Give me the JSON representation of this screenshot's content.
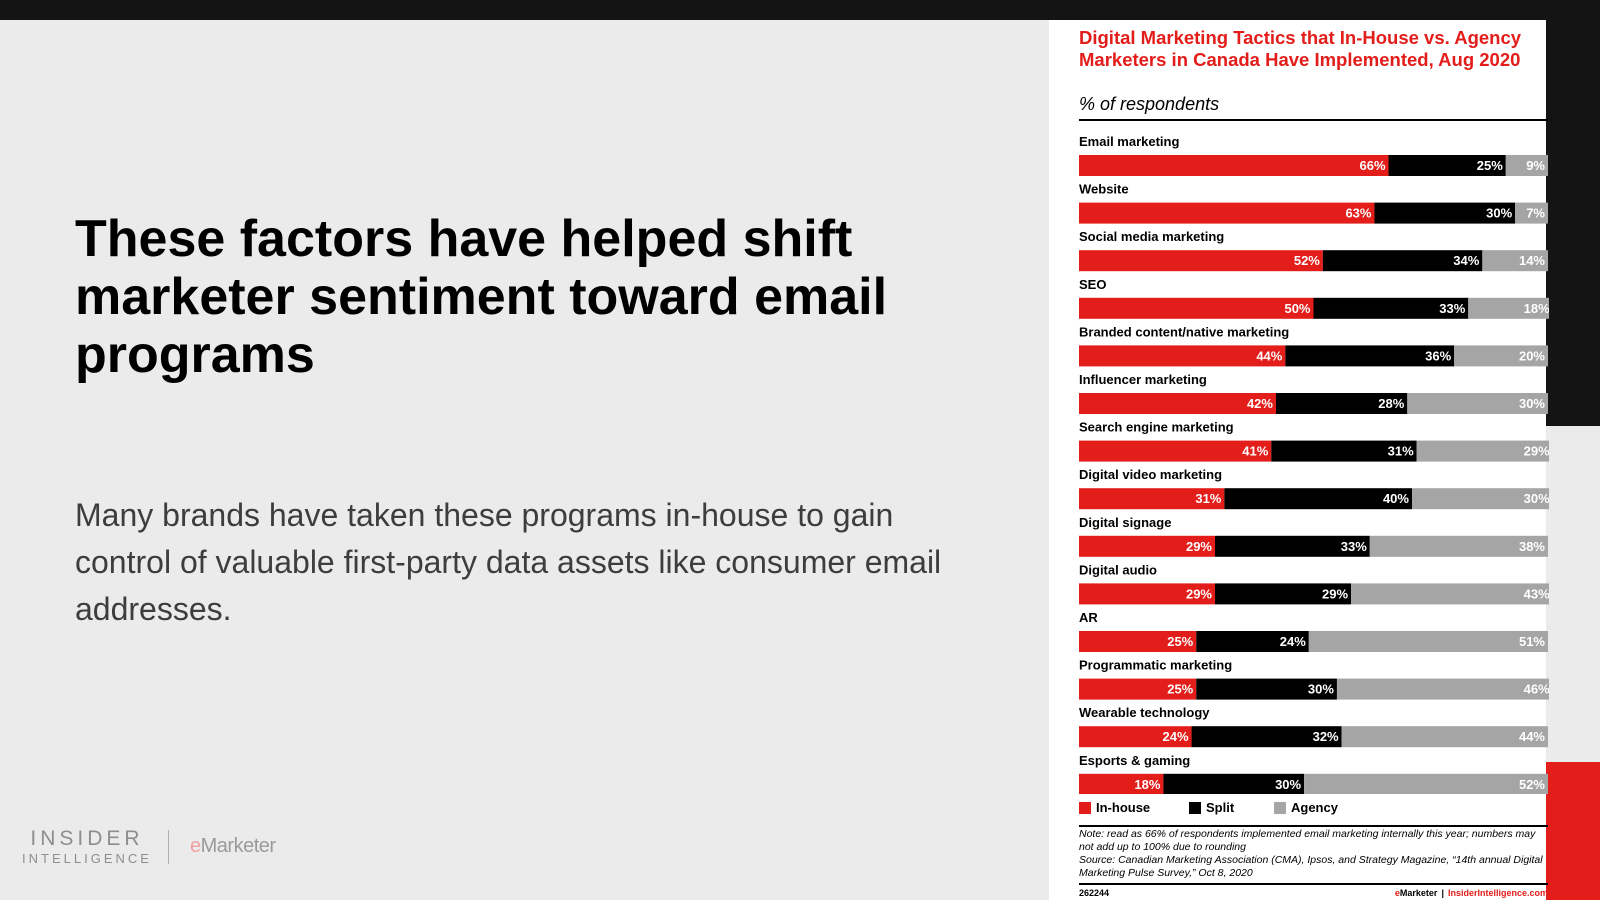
{
  "slide": {
    "title": "These factors have helped shift marketer sentiment toward email programs",
    "body": "Many brands have taken these programs in-house to gain control of valuable first-party data assets like consumer email addresses."
  },
  "branding": {
    "insider_line1": "INSIDER",
    "insider_line2": "INTELLIGENCE",
    "emarketer_e": "e",
    "emarketer_rest": "Marketer"
  },
  "colors": {
    "inhouse": "#e31d1a",
    "split": "#000000",
    "agency": "#a5a5a5",
    "accent": "#e31d1a"
  },
  "chart_data": {
    "type": "bar",
    "orientation": "horizontal",
    "stacked": true,
    "title": "Digital Marketing Tactics that In-House vs. Agency Marketers in Canada Have Implemented, Aug 2020",
    "subtitle": "% of respondents",
    "categories": [
      "Email marketing",
      "Website",
      "Social media marketing",
      "SEO",
      "Branded content/native marketing",
      "Influencer marketing",
      "Search engine marketing",
      "Digital video marketing",
      "Digital signage",
      "Digital audio",
      "AR",
      "Programmatic marketing",
      "Wearable technology",
      "Esports & gaming"
    ],
    "series": [
      {
        "name": "In-house",
        "values": [
          66,
          63,
          52,
          50,
          44,
          42,
          41,
          31,
          29,
          29,
          25,
          25,
          24,
          18
        ]
      },
      {
        "name": "Split",
        "values": [
          25,
          30,
          34,
          33,
          36,
          28,
          31,
          40,
          33,
          29,
          24,
          30,
          32,
          30
        ]
      },
      {
        "name": "Agency",
        "values": [
          9,
          7,
          14,
          18,
          20,
          30,
          29,
          30,
          38,
          43,
          51,
          46,
          44,
          52
        ]
      }
    ],
    "xlim": [
      0,
      100
    ],
    "value_suffix": "%",
    "legend_position": "bottom-left",
    "grid": false,
    "note": "Note: read as 66% of respondents implemented email marketing internally this year; numbers may not add up to 100% due to rounding",
    "source": "Source: Canadian Marketing Association (CMA), Ipsos, and Strategy Magazine, “14th annual Digital Marketing Pulse Survey,” Oct 8, 2020",
    "chart_id": "262244",
    "footer_brand": "eMarketer",
    "footer_site": "InsiderIntelligence.com"
  }
}
